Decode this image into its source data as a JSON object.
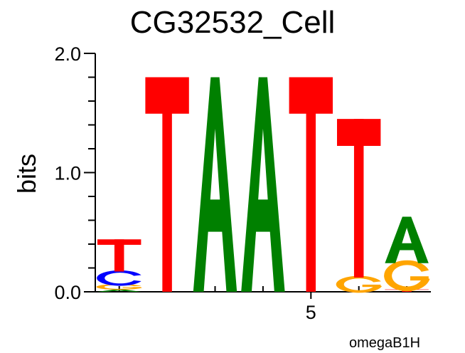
{
  "chart_data": {
    "type": "sequence-logo",
    "title": "CG32532_Cell",
    "ylabel": "bits",
    "xlabel": "",
    "ylim": [
      0,
      2
    ],
    "y_ticks": [
      "0.0",
      "1.0",
      "2.0"
    ],
    "x_tick_labels": [
      {
        "position": 5,
        "label": "5"
      }
    ],
    "footer": "omegaB1H",
    "colors": {
      "A": "#008000",
      "C": "#0000ff",
      "G": "#ffa500",
      "T": "#ff0000"
    },
    "positions": [
      {
        "position": 1,
        "letters": [
          {
            "letter": "A",
            "bits": 0.02
          },
          {
            "letter": "G",
            "bits": 0.04
          },
          {
            "letter": "C",
            "bits": 0.11
          },
          {
            "letter": "T",
            "bits": 0.27
          }
        ]
      },
      {
        "position": 2,
        "letters": [
          {
            "letter": "T",
            "bits": 1.8
          }
        ]
      },
      {
        "position": 3,
        "letters": [
          {
            "letter": "A",
            "bits": 1.8
          }
        ]
      },
      {
        "position": 4,
        "letters": [
          {
            "letter": "A",
            "bits": 1.8
          }
        ]
      },
      {
        "position": 5,
        "letters": [
          {
            "letter": "T",
            "bits": 1.8
          }
        ]
      },
      {
        "position": 6,
        "letters": [
          {
            "letter": "G",
            "bits": 0.12
          },
          {
            "letter": "T",
            "bits": 1.33
          }
        ]
      },
      {
        "position": 7,
        "letters": [
          {
            "letter": "T",
            "bits": 0.02
          },
          {
            "letter": "G",
            "bits": 0.22
          },
          {
            "letter": "A",
            "bits": 0.39
          }
        ]
      }
    ]
  }
}
